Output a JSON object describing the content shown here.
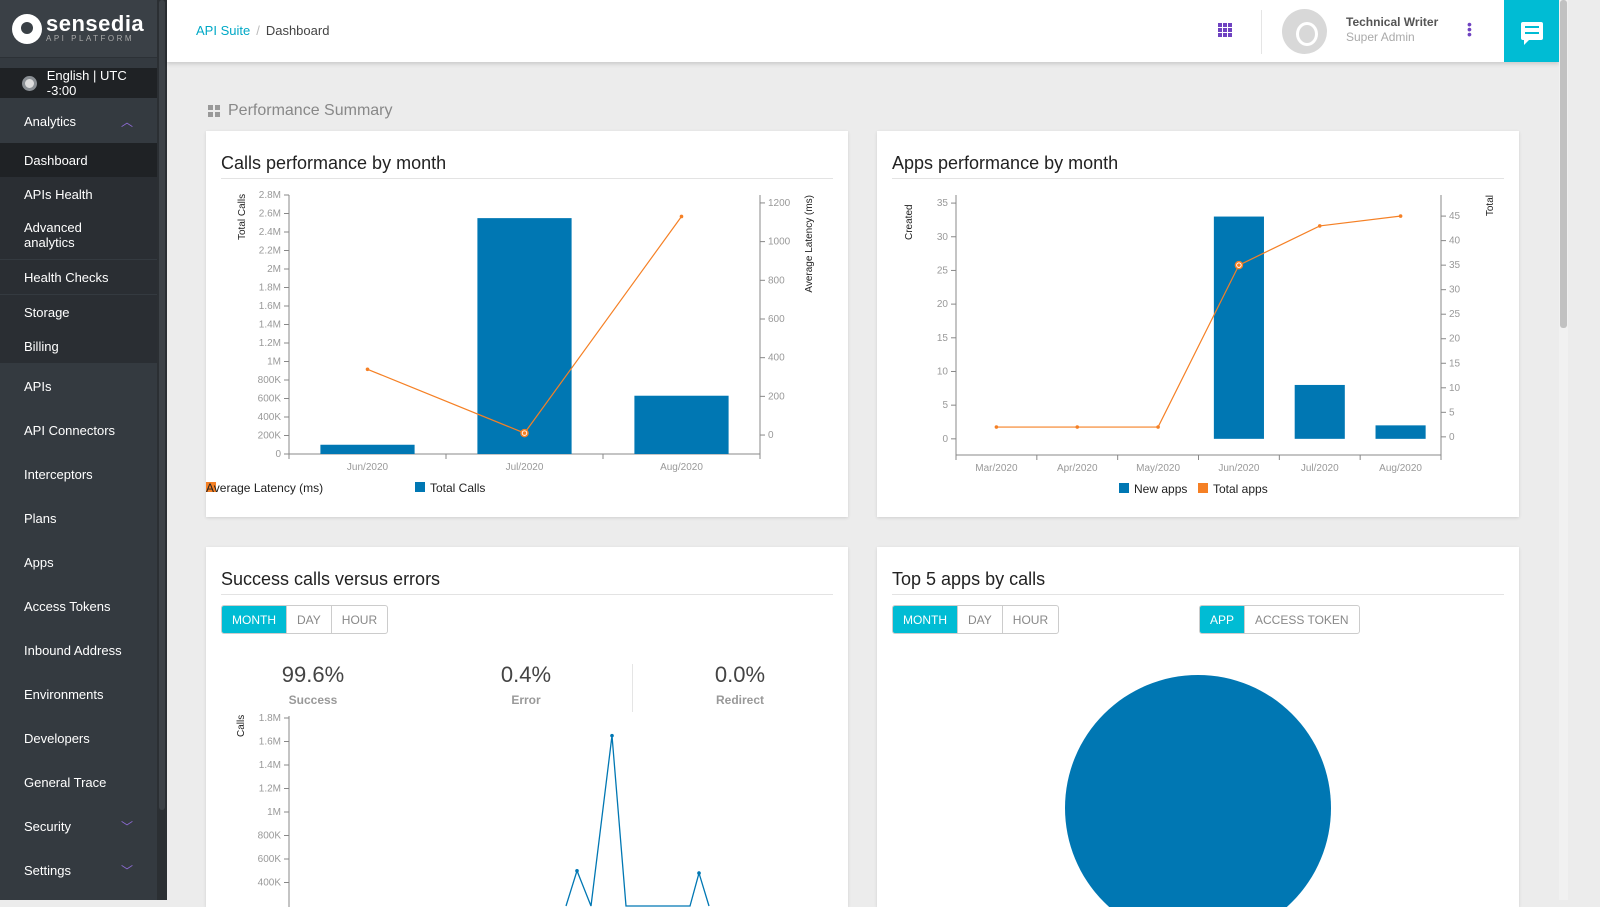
{
  "brand": {
    "name": "sensedia",
    "tagline": "API PLATFORM"
  },
  "locale": "English | UTC -3:00",
  "sidebar": {
    "items": [
      {
        "label": "Analytics",
        "chevron": "chevron-up",
        "type": "group"
      },
      {
        "label": "Dashboard",
        "type": "sub",
        "selected": true
      },
      {
        "label": "APIs Health",
        "type": "sub"
      },
      {
        "label": "Advanced analytics",
        "type": "sub"
      },
      {
        "label": "Health Checks",
        "type": "sub"
      },
      {
        "label": "Storage",
        "type": "sub"
      },
      {
        "label": "Billing",
        "type": "sub"
      },
      {
        "label": "APIs"
      },
      {
        "label": "API Connectors"
      },
      {
        "label": "Interceptors"
      },
      {
        "label": "Plans"
      },
      {
        "label": "Apps"
      },
      {
        "label": "Access Tokens"
      },
      {
        "label": "Inbound Address"
      },
      {
        "label": "Environments"
      },
      {
        "label": "Developers"
      },
      {
        "label": "General Trace"
      },
      {
        "label": "Security",
        "chevron": "chevron-down"
      },
      {
        "label": "Settings",
        "chevron": "chevron-down"
      }
    ]
  },
  "header": {
    "breadcrumb": [
      "API Suite",
      "Dashboard"
    ],
    "user": {
      "name": "Technical Writer",
      "role": "Super Admin"
    }
  },
  "page_title": "Performance Summary",
  "colors": {
    "accent": "#00bcd4",
    "bar": "#0077b3",
    "line": "#f58025",
    "sidebar": "#343a40"
  },
  "cards": {
    "calls": {
      "title": "Calls performance by month"
    },
    "apps": {
      "title": "Apps performance by month"
    },
    "success": {
      "title": "Success calls versus errors",
      "buttons": [
        "MONTH",
        "DAY",
        "HOUR"
      ],
      "active": "MONTH",
      "stats": [
        {
          "value": "99.6%",
          "label": "Success"
        },
        {
          "value": "0.4%",
          "label": "Error"
        },
        {
          "value": "0.0%",
          "label": "Redirect"
        }
      ]
    },
    "top5": {
      "title": "Top 5 apps by calls",
      "buttons": [
        "MONTH",
        "DAY",
        "HOUR"
      ],
      "active": "MONTH",
      "mode_buttons": [
        "APP",
        "ACCESS TOKEN"
      ],
      "mode_active": "APP"
    }
  },
  "chart_data": [
    {
      "type": "bar+line",
      "categories": [
        "Jun/2020",
        "Jul/2020",
        "Aug/2020"
      ],
      "series": [
        {
          "name": "Total Calls",
          "type": "bar",
          "axis": "left",
          "values": [
            100000,
            2550000,
            630000
          ]
        },
        {
          "name": "Average Latency (ms)",
          "type": "line",
          "axis": "right",
          "values": [
            340,
            10,
            1130
          ]
        }
      ],
      "ylabel_left": "Total Calls",
      "ylabel_right": "Average Latency (ms)",
      "yticks_left": [
        "0",
        "200K",
        "400K",
        "600K",
        "800K",
        "1M",
        "1.2M",
        "1.4M",
        "1.6M",
        "1.8M",
        "2M",
        "2.2M",
        "2.4M",
        "2.6M",
        "2.8M"
      ],
      "yticks_right": [
        "0",
        "200",
        "400",
        "600",
        "800",
        "1000",
        "1200"
      ],
      "ylim_left": [
        0,
        2800000
      ],
      "ylim_right": [
        -98,
        1241
      ],
      "legend": "bottom"
    },
    {
      "type": "bar+line",
      "categories": [
        "Mar/2020",
        "Apr/2020",
        "May/2020",
        "Jun/2020",
        "Jul/2020",
        "Aug/2020"
      ],
      "series": [
        {
          "name": "New apps",
          "type": "bar",
          "axis": "left",
          "values": [
            0,
            0,
            0,
            33,
            8,
            2
          ]
        },
        {
          "name": "Total apps",
          "type": "line",
          "axis": "right",
          "values": [
            2,
            2,
            2,
            35,
            43,
            45
          ]
        }
      ],
      "ylabel_left": "Created",
      "ylabel_right": "Total",
      "yticks_left": [
        "0",
        "5",
        "10",
        "15",
        "20",
        "25",
        "30",
        "35"
      ],
      "yticks_right": [
        "0",
        "5",
        "10",
        "15",
        "20",
        "25",
        "30",
        "35",
        "40",
        "45"
      ],
      "ylim_left": [
        -2.4,
        36.2
      ],
      "ylim_right": [
        -3.7,
        49.3
      ],
      "legend": "bottom"
    },
    {
      "type": "line",
      "ylabel": "Calls",
      "yticks": [
        "400K",
        "600K",
        "800K",
        "1M",
        "1.2M",
        "1.4M",
        "1.6M",
        "1.8M"
      ],
      "ylim": [
        0,
        1800000
      ],
      "series": [
        {
          "values": [
            [
              0,
              200000
            ],
            [
              1,
              500000
            ],
            [
              2,
              200000
            ],
            [
              3,
              1650000
            ],
            [
              4,
              200000
            ],
            [
              5,
              200000
            ],
            [
              6,
              480000
            ],
            [
              7,
              200000
            ]
          ]
        }
      ]
    },
    {
      "type": "pie",
      "slices": [
        {
          "value": 100
        }
      ]
    }
  ]
}
